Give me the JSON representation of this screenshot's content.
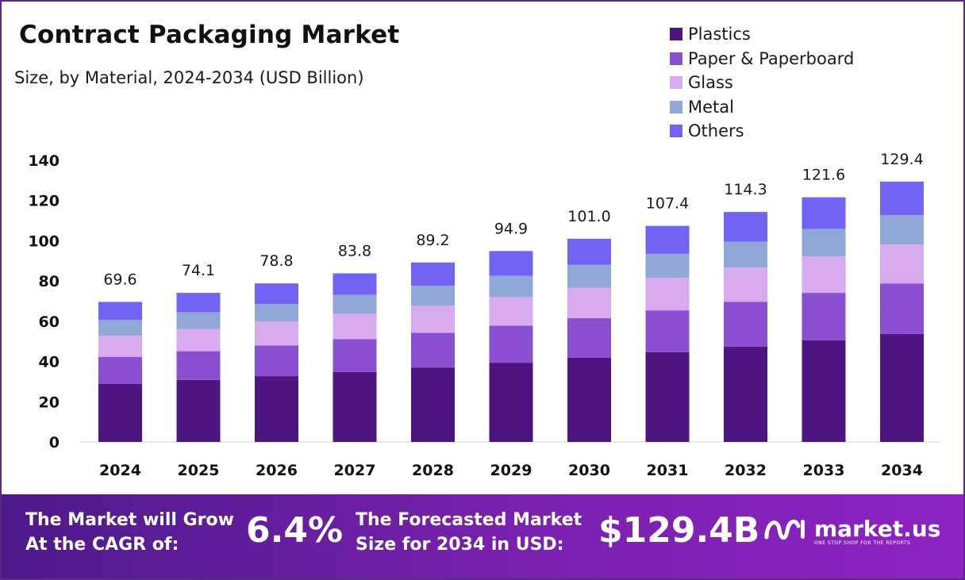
{
  "chart_data": {
    "type": "bar",
    "stacked": true,
    "title": "Contract Packaging Market",
    "subtitle": "Size, by Material, 2024-2034 (USD Billion)",
    "xlabel": "",
    "ylabel": "",
    "ylim": [
      0,
      140
    ],
    "yticks": [
      0,
      20,
      40,
      60,
      80,
      100,
      120,
      140
    ],
    "grid": false,
    "legend_position": "top-right",
    "categories": [
      "2024",
      "2025",
      "2026",
      "2027",
      "2028",
      "2029",
      "2030",
      "2031",
      "2032",
      "2033",
      "2034"
    ],
    "series": [
      {
        "name": "Plastics",
        "color": "#4e1580",
        "values": [
          28.8,
          30.8,
          32.7,
          34.8,
          37.0,
          39.4,
          41.9,
          44.6,
          47.4,
          50.5,
          53.7
        ]
      },
      {
        "name": "Paper & Paperboard",
        "color": "#8a4fd0",
        "values": [
          13.5,
          14.3,
          15.3,
          16.3,
          17.3,
          18.4,
          19.6,
          20.8,
          22.2,
          23.6,
          25.1
        ]
      },
      {
        "name": "Glass",
        "color": "#d7abee",
        "values": [
          10.5,
          11.1,
          11.8,
          12.6,
          13.4,
          14.2,
          15.2,
          16.1,
          17.1,
          18.2,
          19.4
        ]
      },
      {
        "name": "Metal",
        "color": "#8fa8d8",
        "values": [
          7.8,
          8.3,
          8.8,
          9.4,
          10.0,
          10.6,
          11.3,
          12.0,
          12.8,
          13.6,
          14.5
        ]
      },
      {
        "name": "Others",
        "color": "#7263f5",
        "values": [
          9.0,
          9.6,
          10.2,
          10.7,
          11.5,
          12.3,
          13.0,
          13.9,
          14.8,
          15.7,
          16.7
        ]
      }
    ],
    "totals": [
      "69.6",
      "74.1",
      "78.8",
      "83.8",
      "89.2",
      "94.9",
      "101.0",
      "107.4",
      "114.3",
      "121.6",
      "129.4"
    ]
  },
  "banner": {
    "cagr_label_line1": "The Market will Grow",
    "cagr_label_line2": "At the CAGR of:",
    "cagr_value": "6.4%",
    "forecast_label_line1": "The Forecasted Market",
    "forecast_label_line2": "Size for 2034 in USD:",
    "forecast_value": "$129.4B",
    "logo_name": "market.us",
    "logo_tagline": "ONE STOP SHOP FOR THE REPORTS"
  }
}
